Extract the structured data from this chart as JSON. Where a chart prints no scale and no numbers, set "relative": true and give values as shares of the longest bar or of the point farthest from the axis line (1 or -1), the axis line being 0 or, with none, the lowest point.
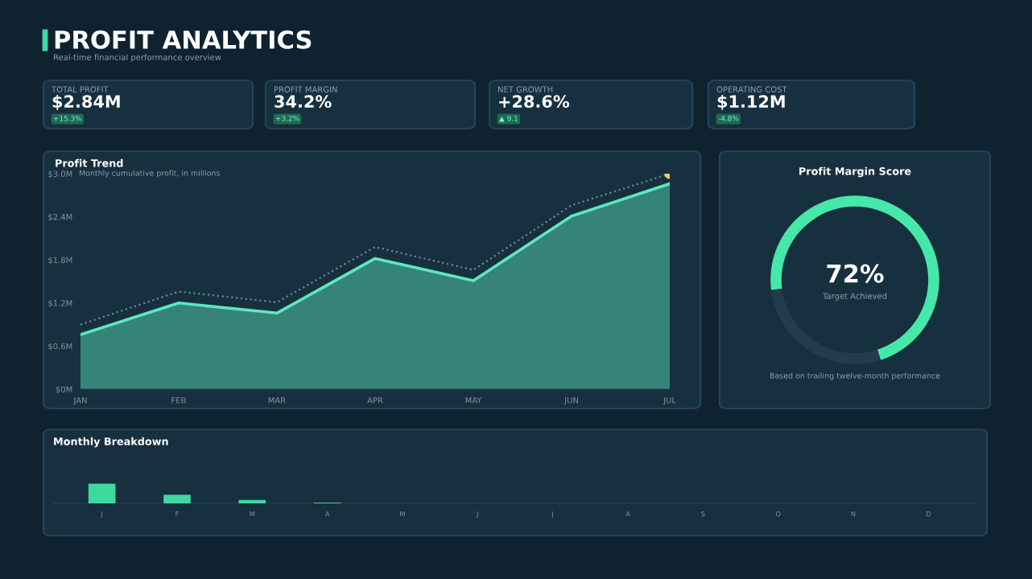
{
  "chart_data": [
    {
      "type": "other",
      "title": "PROFIT ANALYTICS",
      "subtitle": "Real-time financial performance overview"
    },
    {
      "type": "other",
      "title": "TOTAL PROFIT",
      "annotations": [
        "$2.84M",
        "+15.3%"
      ]
    },
    {
      "type": "other",
      "title": "PROFIT MARGIN",
      "annotations": [
        "34.2%",
        "+3.2%"
      ]
    },
    {
      "type": "other",
      "title": "NET GROWTH",
      "annotations": [
        "+28.6%",
        "▲ 9.1"
      ]
    },
    {
      "type": "other",
      "title": "OPERATING COST",
      "annotations": [
        "$1.12M",
        "-4.8%"
      ]
    },
    {
      "type": "area",
      "title": "Profit Trend",
      "subtitle": "Monthly cumulative profit, in millions",
      "categories": [
        "JAN",
        "FEB",
        "MAR",
        "APR",
        "MAY",
        "JUN",
        "JUL"
      ],
      "series": [
        {
          "type": "area",
          "color": "#5ce8c0",
          "values": [
            0.76,
            1.2,
            1.06,
            1.82,
            1.51,
            2.41,
            2.86
          ]
        },
        {
          "type": "line",
          "color": "#6f8794",
          "line_style": "dotted",
          "values": [
            0.9,
            1.36,
            1.21,
            1.98,
            1.66,
            2.56,
            3.0
          ]
        },
        {
          "type": "scatter",
          "color": "#f5c95a",
          "marker": "circle",
          "values": [
            null,
            null,
            null,
            null,
            null,
            null,
            3.0
          ]
        }
      ],
      "ylim": [
        0,
        3.0
      ],
      "yticks": [
        {
          "value": 0,
          "label": "$0M"
        },
        {
          "value": 0.6,
          "label": "$0.6M"
        },
        {
          "value": 1.2,
          "label": "$1.2M"
        },
        {
          "value": 1.8,
          "label": "$1.8M"
        },
        {
          "value": 2.4,
          "label": "$2.4M"
        },
        {
          "value": 3.0,
          "label": "$3.0M"
        }
      ]
    },
    {
      "type": "donut",
      "title": "Profit Margin Score",
      "categories": [
        null,
        null
      ],
      "values": [
        72,
        28
      ],
      "colors": [
        "#45e8a8",
        "#233b4a"
      ],
      "annotations": [
        "72%",
        "Target Achieved",
        "Based on trailing twelve-month performance"
      ]
    },
    {
      "type": "bar",
      "title": "Monthly Breakdown",
      "categories": [
        "J",
        "F",
        "M",
        "A",
        "M",
        "J",
        "J",
        "A",
        "S",
        "O",
        "N",
        "D"
      ],
      "values": [
        1,
        0.44,
        0.17,
        0.04,
        0,
        0,
        0,
        0,
        0,
        0,
        0,
        0
      ],
      "color": "#3ddaa0",
      "relative": true
    }
  ]
}
